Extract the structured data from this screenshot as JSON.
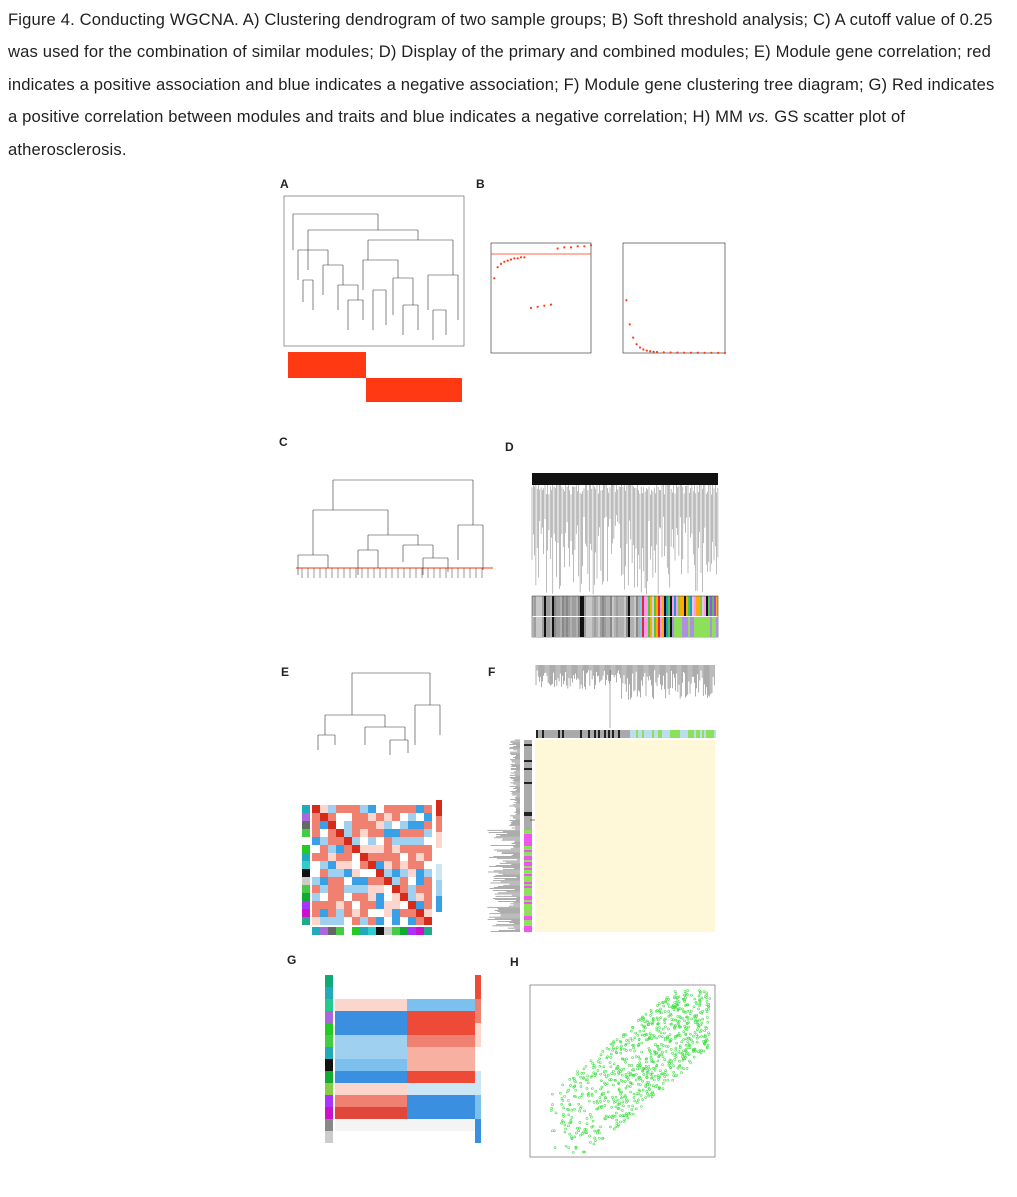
{
  "caption": {
    "lead": "Figure 4.",
    "part1": " Conducting WGCNA. A) Clustering dendrogram of two sample groups; B) Soft threshold analysis; C) A cutoff value of 0.25 was used for the combination of similar modules; D) Display of the primary and combined modules; E) Module gene correlation; red indicates a positive association and blue indicates a negative association; F) Module gene clustering tree diagram; G) Red indicates a positive correlation between modules and traits and blue indicates a negative correlation; H) MM ",
    "vs": "vs.",
    "part2": " GS scatter plot of atherosclerosis."
  },
  "panels": {
    "A": "A",
    "B": "B",
    "C": "C",
    "D": "D",
    "E": "E",
    "F": "F",
    "G": "G",
    "H": "H"
  },
  "colors": {
    "red": "#ff3a12",
    "green": "#44e04a",
    "blue": "#3aa0e6",
    "heatRed": "#ee4a38",
    "cream": "#fff8d8"
  },
  "chart_data": [
    {
      "type": "scatter",
      "panel": "B-left",
      "x": [
        1,
        2,
        3,
        4,
        5,
        6,
        7,
        8,
        9,
        10,
        12,
        14,
        16,
        18,
        20,
        22,
        24,
        26,
        28,
        30
      ],
      "series": [
        {
          "values": [
            0.68,
            0.78,
            0.81,
            0.83,
            0.84,
            0.85,
            0.86,
            0.86,
            0.87,
            0.87,
            0.41,
            0.42,
            0.43,
            0.44,
            0.95,
            0.96,
            0.96,
            0.97,
            0.97,
            0.98
          ]
        }
      ],
      "xlim": [
        0,
        30
      ],
      "ylim": [
        0,
        1
      ],
      "hline": 0.9
    },
    {
      "type": "scatter",
      "panel": "B-right",
      "x": [
        1,
        2,
        3,
        4,
        5,
        6,
        7,
        8,
        9,
        10,
        12,
        14,
        16,
        18,
        20,
        22,
        24,
        26,
        28,
        30
      ],
      "series": [
        {
          "values": [
            2400,
            1300,
            700,
            400,
            250,
            160,
            110,
            80,
            60,
            45,
            30,
            22,
            18,
            15,
            12,
            10,
            9,
            8,
            7,
            6
          ]
        }
      ],
      "xlim": [
        0,
        30
      ],
      "ylim": [
        0,
        5000
      ]
    }
  ]
}
